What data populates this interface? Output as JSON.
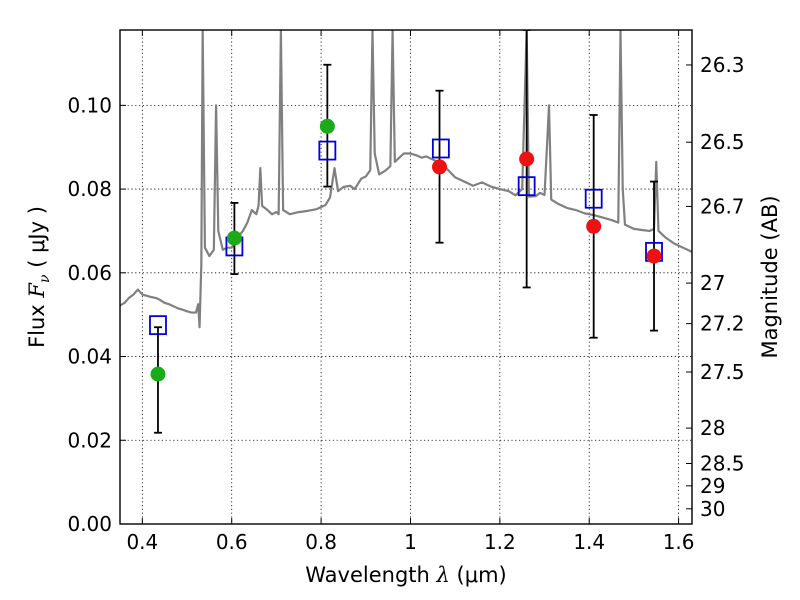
{
  "chart_data": {
    "type": "scatter",
    "xlabel_prefix": "Wavelength",
    "xlabel_symbol": "λ",
    "xlabel_unit": "(μm)",
    "ylabel_prefix": "Flux",
    "ylabel_symbol": "F",
    "ylabel_subscript": "ν",
    "ylabel_unit": "( μJy )",
    "y2label": "Magnitude (AB)",
    "xlim": [
      0.35,
      1.63
    ],
    "ylim": [
      0.0,
      0.118
    ],
    "xticks": [
      {
        "value": 0.4,
        "label": "0.4"
      },
      {
        "value": 0.6,
        "label": "0.6"
      },
      {
        "value": 0.8,
        "label": "0.8"
      },
      {
        "value": 1.0,
        "label": "1"
      },
      {
        "value": 1.2,
        "label": "1.2"
      },
      {
        "value": 1.4,
        "label": "1.4"
      },
      {
        "value": 1.6,
        "label": "1.6"
      }
    ],
    "yticks": [
      {
        "value": 0.0,
        "label": "0.00"
      },
      {
        "value": 0.02,
        "label": "0.02"
      },
      {
        "value": 0.04,
        "label": "0.04"
      },
      {
        "value": 0.06,
        "label": "0.06"
      },
      {
        "value": 0.08,
        "label": "0.08"
      },
      {
        "value": 0.1,
        "label": "0.10"
      }
    ],
    "y2ticks": [
      {
        "value": 26.3,
        "label": "26.3"
      },
      {
        "value": 26.5,
        "label": "26.5"
      },
      {
        "value": 26.7,
        "label": "26.7"
      },
      {
        "value": 27.0,
        "label": "27"
      },
      {
        "value": 27.2,
        "label": "27.2"
      },
      {
        "value": 27.5,
        "label": "27.5"
      },
      {
        "value": 28.0,
        "label": "28"
      },
      {
        "value": 28.5,
        "label": "28.5"
      },
      {
        "value": 29.0,
        "label": "29"
      },
      {
        "value": 30.0,
        "label": "30"
      }
    ],
    "grid": true,
    "colors": {
      "model": "#808080",
      "observed_green": "#1aaa1a",
      "observed_red": "#ee1111",
      "model_band": "#0000dd",
      "errorbar": "#000000"
    },
    "series": [
      {
        "name": "model_spectrum",
        "style": "line",
        "points": [
          [
            0.35,
            0.0522
          ],
          [
            0.36,
            0.0528
          ],
          [
            0.37,
            0.054
          ],
          [
            0.38,
            0.0548
          ],
          [
            0.39,
            0.056
          ],
          [
            0.4,
            0.0548
          ],
          [
            0.41,
            0.0545
          ],
          [
            0.42,
            0.0542
          ],
          [
            0.43,
            0.054
          ],
          [
            0.44,
            0.0535
          ],
          [
            0.45,
            0.0528
          ],
          [
            0.46,
            0.0525
          ],
          [
            0.47,
            0.052
          ],
          [
            0.48,
            0.0515
          ],
          [
            0.49,
            0.0512
          ],
          [
            0.5,
            0.0508
          ],
          [
            0.51,
            0.0505
          ],
          [
            0.52,
            0.0505
          ],
          [
            0.525,
            0.0525
          ],
          [
            0.528,
            0.047
          ],
          [
            0.532,
            0.062
          ],
          [
            0.535,
            0.118
          ],
          [
            0.54,
            0.066
          ],
          [
            0.55,
            0.064
          ],
          [
            0.56,
            0.0655
          ],
          [
            0.565,
            0.1
          ],
          [
            0.57,
            0.07
          ],
          [
            0.58,
            0.0655
          ],
          [
            0.59,
            0.066
          ],
          [
            0.6,
            0.066
          ],
          [
            0.61,
            0.068
          ],
          [
            0.625,
            0.07
          ],
          [
            0.635,
            0.072
          ],
          [
            0.645,
            0.075
          ],
          [
            0.655,
            0.074
          ],
          [
            0.66,
            0.076
          ],
          [
            0.664,
            0.085
          ],
          [
            0.668,
            0.076
          ],
          [
            0.68,
            0.075
          ],
          [
            0.69,
            0.074
          ],
          [
            0.7,
            0.0745
          ],
          [
            0.705,
            0.074
          ],
          [
            0.71,
            0.118
          ],
          [
            0.715,
            0.075
          ],
          [
            0.73,
            0.074
          ],
          [
            0.75,
            0.0745
          ],
          [
            0.77,
            0.0748
          ],
          [
            0.79,
            0.0752
          ],
          [
            0.81,
            0.0762
          ],
          [
            0.82,
            0.078
          ],
          [
            0.83,
            0.085
          ],
          [
            0.838,
            0.0795
          ],
          [
            0.85,
            0.0805
          ],
          [
            0.865,
            0.0808
          ],
          [
            0.875,
            0.08
          ],
          [
            0.89,
            0.0825
          ],
          [
            0.9,
            0.083
          ],
          [
            0.91,
            0.0845
          ],
          [
            0.915,
            0.118
          ],
          [
            0.92,
            0.0885
          ],
          [
            0.93,
            0.0835
          ],
          [
            0.945,
            0.0845
          ],
          [
            0.955,
            0.0855
          ],
          [
            0.96,
            0.118
          ],
          [
            0.965,
            0.0865
          ],
          [
            0.975,
            0.0875
          ],
          [
            0.985,
            0.0885
          ],
          [
            1.0,
            0.0885
          ],
          [
            1.015,
            0.088
          ],
          [
            1.025,
            0.0875
          ],
          [
            1.035,
            0.0878
          ],
          [
            1.045,
            0.0873
          ],
          [
            1.06,
            0.0866
          ],
          [
            1.08,
            0.085
          ],
          [
            1.1,
            0.0828
          ],
          [
            1.12,
            0.0818
          ],
          [
            1.14,
            0.0808
          ],
          [
            1.16,
            0.0816
          ],
          [
            1.18,
            0.0806
          ],
          [
            1.2,
            0.08
          ],
          [
            1.22,
            0.0795
          ],
          [
            1.235,
            0.0785
          ],
          [
            1.25,
            0.08
          ],
          [
            1.26,
            0.118
          ],
          [
            1.265,
            0.0782
          ],
          [
            1.28,
            0.0783
          ],
          [
            1.29,
            0.0791
          ],
          [
            1.3,
            0.0786
          ],
          [
            1.31,
            0.1
          ],
          [
            1.315,
            0.0775
          ],
          [
            1.33,
            0.0765
          ],
          [
            1.35,
            0.0755
          ],
          [
            1.37,
            0.075
          ],
          [
            1.39,
            0.0742
          ],
          [
            1.41,
            0.0738
          ],
          [
            1.43,
            0.0732
          ],
          [
            1.45,
            0.0726
          ],
          [
            1.465,
            0.072
          ],
          [
            1.47,
            0.118
          ],
          [
            1.475,
            0.08
          ],
          [
            1.48,
            0.0715
          ],
          [
            1.5,
            0.0705
          ],
          [
            1.52,
            0.0702
          ],
          [
            1.535,
            0.07
          ],
          [
            1.545,
            0.0705
          ],
          [
            1.55,
            0.0865
          ],
          [
            1.555,
            0.07
          ],
          [
            1.57,
            0.0685
          ],
          [
            1.59,
            0.067
          ],
          [
            1.61,
            0.066
          ],
          [
            1.63,
            0.065
          ]
        ]
      },
      {
        "name": "observed_green",
        "style": "circle",
        "points": [
          {
            "x": 0.435,
            "y": 0.0358,
            "yerr_low": 0.0218,
            "yerr_high": 0.047
          },
          {
            "x": 0.606,
            "y": 0.0683,
            "yerr_low": 0.0597,
            "yerr_high": 0.0767
          },
          {
            "x": 0.814,
            "y": 0.095,
            "yerr_low": 0.0806,
            "yerr_high": 0.1097
          }
        ]
      },
      {
        "name": "observed_red",
        "style": "circle",
        "points": [
          {
            "x": 1.065,
            "y": 0.0853,
            "yerr_low": 0.0672,
            "yerr_high": 0.1035
          },
          {
            "x": 1.26,
            "y": 0.0872,
            "yerr_low": 0.0565,
            "yerr_high": 0.118
          },
          {
            "x": 1.41,
            "y": 0.0711,
            "yerr_low": 0.0445,
            "yerr_high": 0.0977
          },
          {
            "x": 1.545,
            "y": 0.064,
            "yerr_low": 0.0462,
            "yerr_high": 0.0818
          }
        ]
      },
      {
        "name": "model_band_flux",
        "style": "square",
        "points": [
          {
            "x": 0.435,
            "y": 0.0475
          },
          {
            "x": 0.606,
            "y": 0.0663
          },
          {
            "x": 0.814,
            "y": 0.0892
          },
          {
            "x": 1.068,
            "y": 0.0897
          },
          {
            "x": 1.26,
            "y": 0.0807
          },
          {
            "x": 1.41,
            "y": 0.0777
          },
          {
            "x": 1.545,
            "y": 0.065
          }
        ]
      }
    ]
  }
}
